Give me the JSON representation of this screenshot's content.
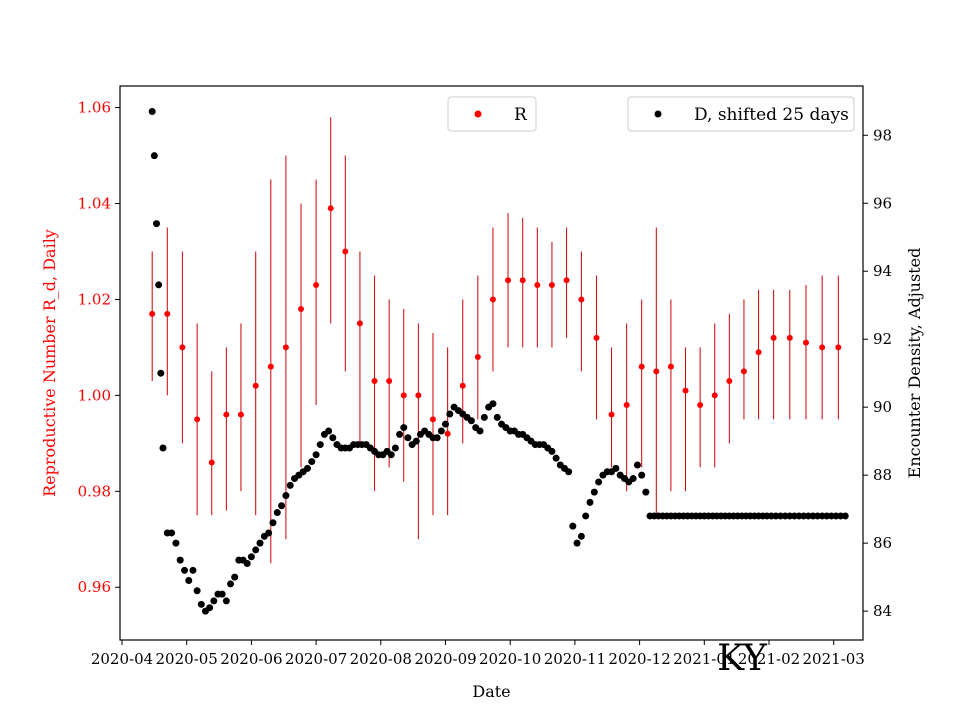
{
  "chart_data": {
    "type": "scatter",
    "title": "",
    "annotation": "KY",
    "xlabel": "Date",
    "ylabel_left": "Reproductive Number R_d, Daily",
    "ylabel_right": "Encounter Density, Adjusted",
    "x_ticks": [
      "2020-04",
      "2020-05",
      "2020-06",
      "2020-07",
      "2020-08",
      "2020-09",
      "2020-10",
      "2020-11",
      "2020-12",
      "2021-01",
      "2021-02",
      "2021-03"
    ],
    "ylim_left": [
      0.949,
      1.0645
    ],
    "ylim_right": [
      83.15,
      99.45
    ],
    "yticks_left": [
      "0.96",
      "0.98",
      "1.00",
      "1.02",
      "1.04",
      "1.06"
    ],
    "yticks_right": [
      "84",
      "86",
      "88",
      "90",
      "92",
      "94",
      "96",
      "98"
    ],
    "legend": [
      {
        "label": "R",
        "marker": "dot",
        "color": "#ff0000",
        "placement": "top-center"
      },
      {
        "label": "D, shifted 25 days",
        "marker": "dot",
        "color": "#000000",
        "placement": "top-right"
      }
    ],
    "colors": {
      "R": "#ff0000",
      "R_error": "#cc0000",
      "D": "#000000",
      "left_axis_text": "#ff0000"
    },
    "series": [
      {
        "name": "R",
        "axis": "left",
        "x_days_since_2020_04_01": [
          14,
          21,
          28,
          35,
          42,
          49,
          56,
          63,
          70,
          77,
          84,
          91,
          98,
          105,
          112,
          119,
          126,
          133,
          140,
          147,
          154,
          161,
          168,
          175,
          182,
          189,
          196,
          203,
          210,
          217,
          224,
          231,
          238,
          245,
          252,
          259,
          266,
          273,
          280,
          287,
          294,
          301,
          308,
          315,
          322,
          329,
          336
        ],
        "values": [
          1.017,
          1.017,
          1.01,
          0.995,
          0.986,
          0.996,
          0.996,
          1.002,
          1.006,
          1.01,
          1.018,
          1.023,
          1.039,
          1.03,
          1.015,
          1.003,
          1.003,
          1.0,
          1.0,
          0.995,
          0.992,
          1.002,
          1.008,
          1.02,
          1.024,
          1.024,
          1.023,
          1.023,
          1.024,
          1.02,
          1.012,
          0.996,
          0.998,
          1.006,
          1.005,
          1.006,
          1.001,
          0.998,
          1.0,
          1.003,
          1.005,
          1.009,
          1.012,
          1.012,
          1.011,
          1.01,
          1.01
        ],
        "error_low": [
          1.003,
          1.0,
          0.99,
          0.975,
          0.975,
          0.976,
          0.98,
          0.975,
          0.965,
          0.97,
          0.985,
          0.998,
          1.015,
          1.005,
          0.99,
          0.98,
          0.985,
          0.982,
          0.97,
          0.975,
          0.975,
          0.99,
          0.995,
          1.005,
          1.01,
          1.01,
          1.01,
          1.01,
          1.012,
          1.005,
          0.995,
          0.985,
          0.98,
          0.985,
          0.975,
          0.98,
          0.98,
          0.985,
          0.985,
          0.99,
          0.995,
          0.995,
          0.995,
          0.995,
          0.995,
          0.995,
          0.995
        ],
        "error_high": [
          1.03,
          1.035,
          1.03,
          1.015,
          1.005,
          1.01,
          1.015,
          1.03,
          1.045,
          1.05,
          1.04,
          1.045,
          1.058,
          1.05,
          1.03,
          1.025,
          1.02,
          1.018,
          1.015,
          1.013,
          1.01,
          1.02,
          1.025,
          1.035,
          1.038,
          1.037,
          1.035,
          1.032,
          1.035,
          1.03,
          1.025,
          1.01,
          1.015,
          1.02,
          1.035,
          1.02,
          1.01,
          1.01,
          1.015,
          1.017,
          1.02,
          1.022,
          1.022,
          1.022,
          1.023,
          1.025,
          1.025
        ]
      },
      {
        "name": "D, shifted 25 days",
        "axis": "right",
        "x_days_since_2020_04_01": [
          14,
          15,
          16,
          17,
          18,
          19,
          21,
          23,
          25,
          27,
          29,
          31,
          33,
          35,
          37,
          39,
          41,
          43,
          45,
          47,
          49,
          51,
          53,
          55,
          57,
          59,
          61,
          63,
          65,
          67,
          69,
          71,
          73,
          75,
          77,
          79,
          81,
          83,
          85,
          87,
          89,
          91,
          93,
          95,
          97,
          99,
          101,
          103,
          105,
          107,
          109,
          111,
          113,
          115,
          117,
          119,
          121,
          123,
          125,
          127,
          129,
          131,
          133,
          135,
          137,
          139,
          141,
          143,
          145,
          147,
          149,
          151,
          153,
          155,
          157,
          159,
          161,
          163,
          165,
          167,
          169,
          171,
          173,
          175,
          177,
          179,
          181,
          183,
          185,
          187,
          189,
          191,
          193,
          195,
          197,
          199,
          201,
          203,
          205,
          207,
          209,
          211,
          213,
          215,
          217,
          219,
          221,
          223,
          225,
          227,
          229,
          231,
          233,
          235,
          237,
          239,
          241,
          243,
          245,
          247,
          249,
          251,
          253,
          255,
          257,
          259,
          261,
          263,
          265,
          267,
          269,
          271,
          273,
          275,
          277,
          279,
          281,
          283,
          285,
          287,
          289,
          291,
          293,
          295,
          297,
          299,
          301,
          303,
          305,
          307,
          309,
          311,
          313,
          315,
          317,
          319,
          321,
          323,
          325,
          327,
          329,
          331,
          333,
          335,
          337,
          339
        ],
        "values": [
          98.7,
          97.4,
          95.4,
          93.6,
          91.0,
          88.8,
          86.3,
          86.3,
          86.0,
          85.5,
          85.2,
          84.9,
          85.2,
          84.6,
          84.2,
          84.0,
          84.1,
          84.3,
          84.5,
          84.5,
          84.3,
          84.8,
          85.0,
          85.5,
          85.5,
          85.4,
          85.6,
          85.8,
          86.0,
          86.2,
          86.3,
          86.6,
          86.9,
          87.1,
          87.4,
          87.7,
          87.9,
          88.0,
          88.1,
          88.2,
          88.4,
          88.6,
          88.9,
          89.2,
          89.3,
          89.1,
          88.9,
          88.8,
          88.8,
          88.8,
          88.9,
          88.9,
          88.9,
          88.9,
          88.8,
          88.7,
          88.6,
          88.6,
          88.7,
          88.6,
          88.8,
          89.2,
          89.4,
          89.1,
          88.9,
          89.0,
          89.2,
          89.3,
          89.2,
          89.1,
          89.1,
          89.3,
          89.5,
          89.8,
          90.0,
          89.9,
          89.8,
          89.7,
          89.6,
          89.4,
          89.3,
          89.7,
          90.0,
          90.1,
          89.7,
          89.5,
          89.4,
          89.3,
          89.3,
          89.2,
          89.2,
          89.1,
          89.0,
          88.9,
          88.9,
          88.9,
          88.8,
          88.7,
          88.5,
          88.3,
          88.2,
          88.1,
          86.5,
          86.0,
          86.2,
          86.8,
          87.2,
          87.5,
          87.8,
          88.0,
          88.1,
          88.1,
          88.2,
          88.0,
          87.9,
          87.8,
          87.9,
          88.3,
          88.0,
          87.5,
          86.8,
          86.8,
          86.8,
          86.8,
          86.8,
          86.8,
          86.8,
          86.8,
          86.8,
          86.8,
          86.8,
          86.8,
          86.8,
          86.8,
          86.8,
          86.8,
          86.8,
          86.8,
          86.8,
          86.8,
          86.8,
          86.8,
          86.8,
          86.8,
          86.8,
          86.8,
          86.8,
          86.8,
          86.8,
          86.8,
          86.8,
          86.8,
          86.8,
          86.8,
          86.8,
          86.8,
          86.8,
          86.8,
          86.8,
          86.8,
          86.8,
          86.8,
          86.8,
          86.8,
          86.8,
          86.8,
          86.8,
          86.8
        ]
      }
    ]
  }
}
